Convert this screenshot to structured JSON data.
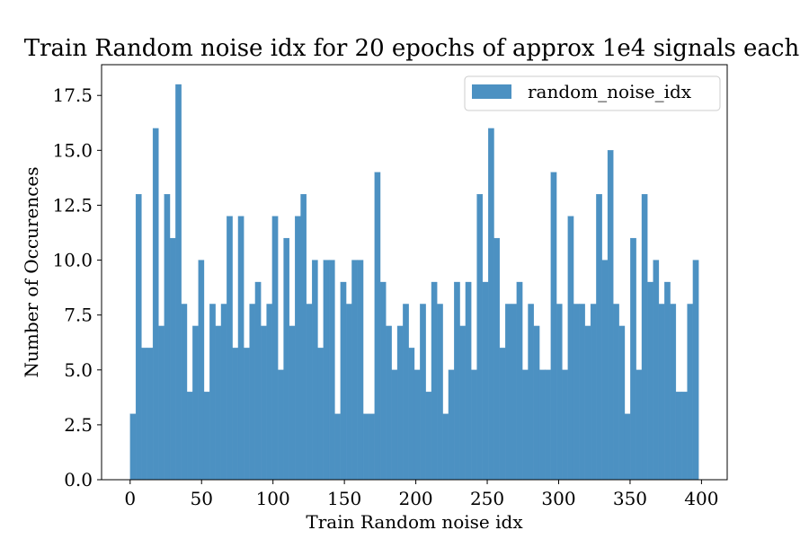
{
  "chart_data": {
    "type": "bar",
    "title": "Train Random noise idx for 20 epochs of approx 1e4 signals each",
    "xlabel": "Train Random noise idx",
    "ylabel": "Number of Occurences",
    "xlim": [
      -20,
      418
    ],
    "ylim": [
      0,
      18.9
    ],
    "x_ticks": [
      0,
      50,
      100,
      150,
      200,
      250,
      300,
      350,
      400
    ],
    "x_tick_labels": [
      "0",
      "50",
      "100",
      "150",
      "200",
      "250",
      "300",
      "350",
      "400"
    ],
    "y_ticks": [
      0,
      2.5,
      5,
      7.5,
      10,
      12.5,
      15,
      17.5
    ],
    "y_tick_labels": [
      "0.0",
      "2.5",
      "5.0",
      "7.5",
      "10.0",
      "12.5",
      "15.0",
      "17.5"
    ],
    "bin_start": 0,
    "bin_width": 3.98,
    "series": [
      {
        "name": "random_noise_idx",
        "color": "#4c91c2",
        "values": [
          3,
          13,
          6,
          6,
          16,
          7,
          13,
          11,
          18,
          8,
          4,
          7,
          10,
          4,
          8,
          7,
          8,
          12,
          6,
          12,
          6,
          8,
          9,
          7,
          8,
          12,
          5,
          11,
          7,
          12,
          13,
          8,
          10,
          6,
          10,
          10,
          3,
          9,
          8,
          10,
          10,
          3,
          3,
          14,
          9,
          7,
          5,
          7,
          8,
          6,
          5,
          8,
          4,
          9,
          8,
          3,
          5,
          9,
          7,
          9,
          5,
          13,
          9,
          16,
          11,
          6,
          8,
          8,
          9,
          5,
          8,
          7,
          5,
          5,
          14,
          8,
          5,
          12,
          8,
          8,
          7,
          8,
          13,
          10,
          15,
          8,
          7,
          3,
          11,
          5,
          13,
          9,
          10,
          8,
          9,
          8,
          4,
          4,
          8,
          10
        ]
      }
    ],
    "legend": {
      "position": "top-right"
    },
    "grid": false
  }
}
